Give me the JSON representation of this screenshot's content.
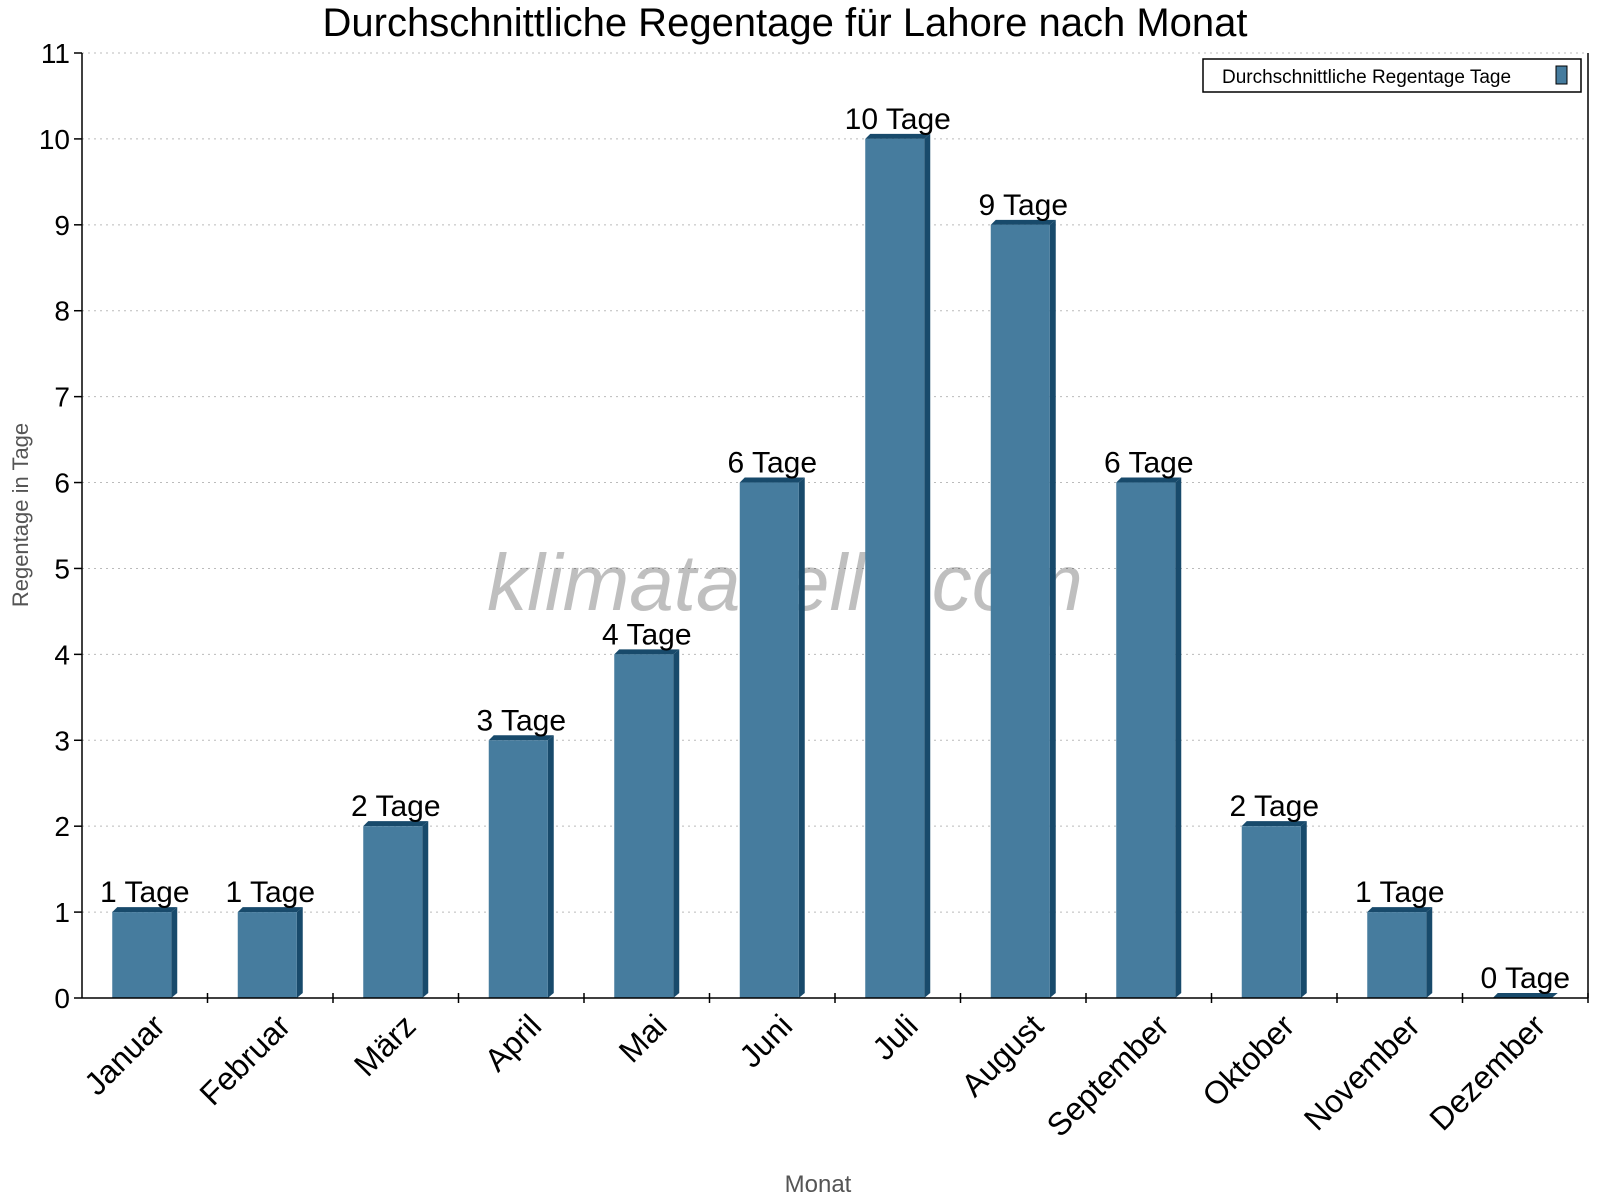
{
  "chart_data": {
    "type": "bar",
    "title": "Durchschnittliche Regentage für Lahore nach Monat",
    "xlabel": "Monat",
    "ylabel": "Regentage in Tage",
    "categories": [
      "Januar",
      "Februar",
      "März",
      "April",
      "Mai",
      "Juni",
      "Juli",
      "August",
      "September",
      "Oktober",
      "November",
      "Dezember"
    ],
    "series": [
      {
        "name": "Durchschnittliche Regentage Tage",
        "values": [
          1,
          1,
          2,
          3,
          4,
          6,
          10,
          9,
          6,
          2,
          1,
          0
        ],
        "color": "#467c9e",
        "side_color": "#184a6b"
      }
    ],
    "data_labels": [
      "1 Tage",
      "1 Tage",
      "2 Tage",
      "3 Tage",
      "4 Tage",
      "6 Tage",
      "10 Tage",
      "9 Tage",
      "6 Tage",
      "2 Tage",
      "1 Tage",
      "0 Tage"
    ],
    "ylim": [
      0,
      11
    ],
    "yticks": [
      "0",
      "1",
      "2",
      "3",
      "4",
      "5",
      "6",
      "7",
      "8",
      "9",
      "10",
      "11"
    ],
    "grid": true,
    "legend_position": "top-right",
    "watermark": "klimatabelle.com"
  }
}
